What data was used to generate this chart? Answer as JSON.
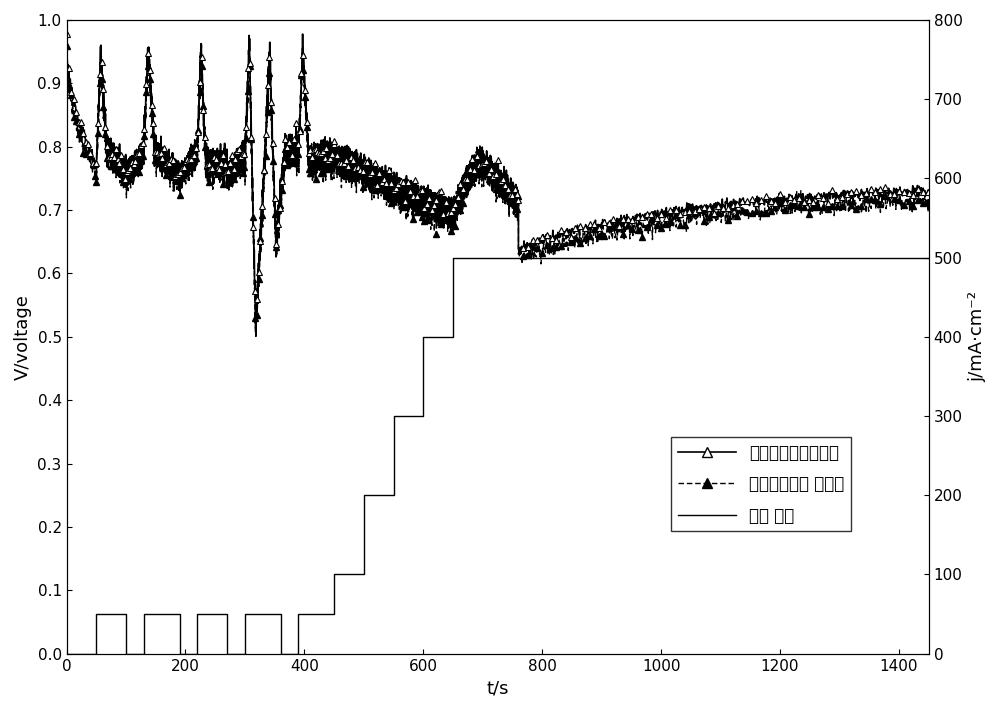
{
  "xlabel": "t/s",
  "ylabel_left": "V/voltage",
  "ylabel_right": "j/mA·cm⁻²",
  "xlim": [
    0,
    1450
  ],
  "ylim_left": [
    0.0,
    1.0
  ],
  "ylim_right": [
    0,
    800
  ],
  "xticks": [
    0,
    200,
    400,
    600,
    800,
    1000,
    1200,
    1400
  ],
  "yticks_left": [
    0.0,
    0.1,
    0.2,
    0.3,
    0.4,
    0.5,
    0.6,
    0.7,
    0.8,
    0.9,
    1.0
  ],
  "yticks_right": [
    0,
    100,
    200,
    300,
    400,
    500,
    600,
    700,
    800
  ],
  "legend_labels": [
    "电堆内单池平均电压",
    "电堆内单池最 低电压",
    "电流 密度"
  ],
  "background_color": "#ffffff",
  "fontsize_label": 13,
  "fontsize_tick": 11,
  "fontsize_legend": 12,
  "current_steps_t": [
    0,
    50,
    50,
    100,
    100,
    130,
    130,
    190,
    190,
    220,
    220,
    270,
    270,
    300,
    300,
    360,
    360,
    390,
    390,
    450,
    450,
    500,
    500,
    550,
    550,
    600,
    600,
    650,
    650,
    700,
    700,
    760,
    760,
    1450
  ],
  "current_steps_j": [
    0,
    0,
    50,
    50,
    0,
    0,
    50,
    50,
    0,
    0,
    50,
    50,
    0,
    0,
    50,
    50,
    0,
    0,
    50,
    50,
    100,
    100,
    200,
    200,
    300,
    300,
    400,
    400,
    500,
    500,
    500,
    500,
    500,
    500
  ]
}
